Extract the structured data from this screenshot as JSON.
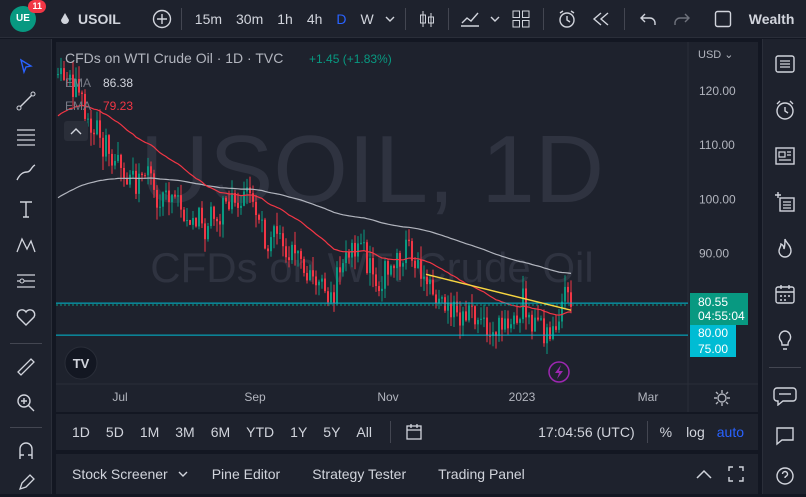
{
  "header": {
    "notification_count": "11",
    "symbol": "USOIL",
    "intervals": [
      "15m",
      "30m",
      "1h",
      "4h",
      "D",
      "W"
    ],
    "active_interval": "D",
    "workspace": "Wealth"
  },
  "chart": {
    "legend_title": "CFDs on WTI Crude Oil · 1D · TVC",
    "change": "+1.45 (+1.83%)",
    "indicators": [
      {
        "name": "EMA",
        "value": "86.38",
        "color": "#d1d4dc"
      },
      {
        "name": "EMA",
        "value": "79.23",
        "color": "#f23645"
      }
    ],
    "watermark_symbol": "USOIL, 1D",
    "watermark_desc": "CFDs on WTI Crude Oil",
    "currency": "USD",
    "price_ticks": [
      "120.00",
      "110.00",
      "100.00",
      "90.00"
    ],
    "price_ticks_values": [
      120,
      110,
      100,
      90
    ],
    "last_price": "80.55",
    "countdown": "04:55:04",
    "line_labels": [
      "80.00",
      "75.00"
    ],
    "time_labels": [
      "Jul",
      "Sep",
      "Nov",
      "2023",
      "Mar"
    ],
    "price_range": [
      66,
      129
    ]
  },
  "toolbar_bottom": {
    "ranges": [
      "1D",
      "5D",
      "1M",
      "3M",
      "6M",
      "YTD",
      "1Y",
      "5Y",
      "All"
    ],
    "clock": "17:04:56 (UTC)",
    "percent": "%",
    "log": "log",
    "auto": "auto"
  },
  "panel_tabs": [
    "Stock Screener",
    "Pine Editor",
    "Strategy Tester",
    "Trading Panel"
  ],
  "colors": {
    "up": "#089981",
    "down": "#f23645",
    "accent": "#2962ff",
    "cyan": "#00bcd4",
    "yellow": "#f7d540"
  }
}
